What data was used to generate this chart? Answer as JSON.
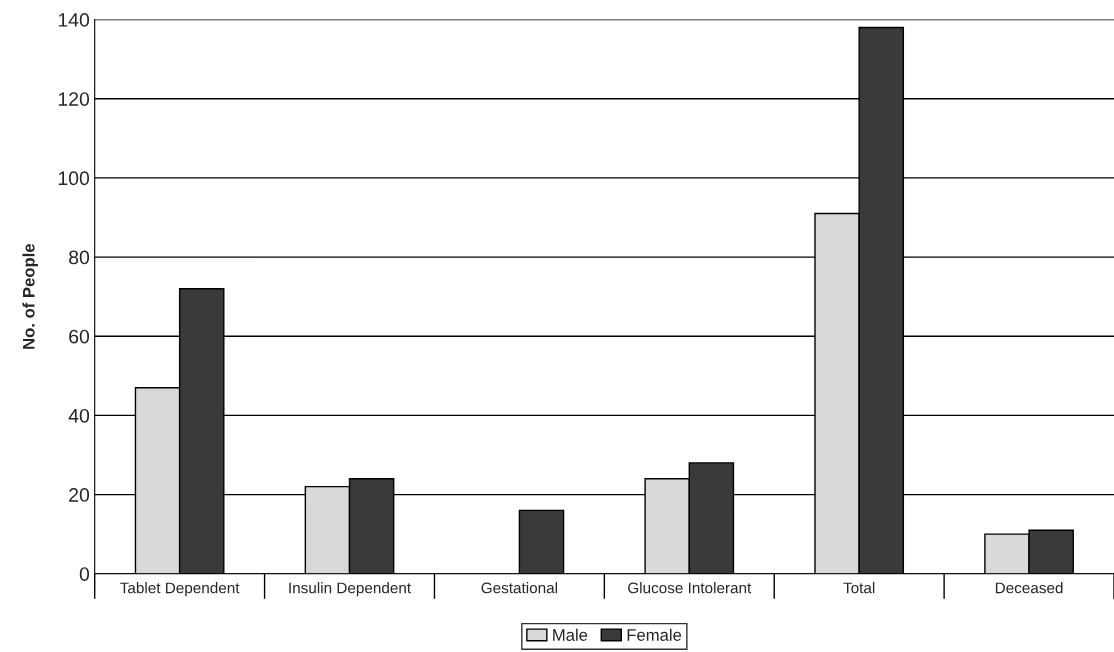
{
  "chart_data": {
    "type": "bar",
    "ylabel": "No. of People",
    "categories": [
      "Tablet Dependent",
      "Insulin Dependent",
      "Gestational",
      "Glucose Intolerant",
      "Total",
      "Deceased"
    ],
    "series": [
      {
        "name": "Male",
        "color": "#d9d9d9",
        "values": [
          47,
          22,
          null,
          24,
          91,
          10
        ]
      },
      {
        "name": "Female",
        "color": "#3a3a3a",
        "values": [
          72,
          24,
          16,
          28,
          138,
          11
        ]
      }
    ],
    "ylim": [
      0,
      140
    ],
    "yticks": [
      0,
      20,
      40,
      60,
      80,
      100,
      120,
      140
    ],
    "grid": "y",
    "legend": "bottom"
  }
}
